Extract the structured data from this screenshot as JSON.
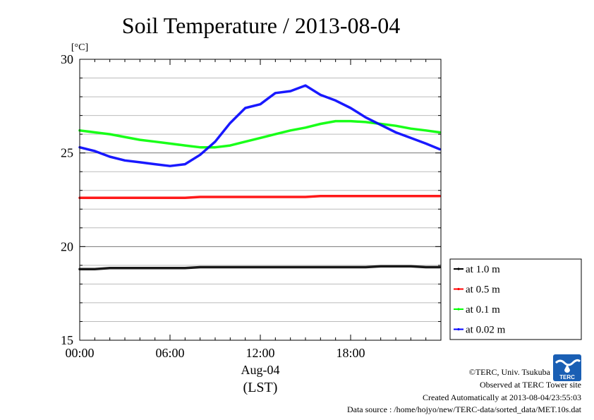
{
  "chart_data": {
    "type": "line",
    "title": "Soil Temperature / 2013-08-04",
    "ylabel": "[°C]",
    "xlabel": "(LST)",
    "date_label": "Aug-04",
    "xlim": [
      "00:00",
      "24:00"
    ],
    "ylim": [
      15,
      30
    ],
    "x_ticks": [
      "00:00",
      "06:00",
      "12:00",
      "18:00"
    ],
    "y_ticks": [
      15,
      20,
      25,
      30
    ],
    "grid": true,
    "legend_position": "right-bottom",
    "x": [
      "00:00",
      "01:00",
      "02:00",
      "03:00",
      "04:00",
      "05:00",
      "06:00",
      "07:00",
      "08:00",
      "09:00",
      "10:00",
      "11:00",
      "12:00",
      "13:00",
      "14:00",
      "15:00",
      "16:00",
      "17:00",
      "18:00",
      "19:00",
      "20:00",
      "21:00",
      "22:00",
      "23:00",
      "23:55"
    ],
    "series": [
      {
        "name": "at 1.0 m",
        "color": "#000000",
        "values": [
          18.8,
          18.8,
          18.85,
          18.85,
          18.85,
          18.85,
          18.85,
          18.85,
          18.9,
          18.9,
          18.9,
          18.9,
          18.9,
          18.9,
          18.9,
          18.9,
          18.9,
          18.9,
          18.9,
          18.9,
          18.95,
          18.95,
          18.95,
          18.9,
          18.9
        ]
      },
      {
        "name": "at 0.5 m",
        "color": "#ff0000",
        "values": [
          22.6,
          22.6,
          22.6,
          22.6,
          22.6,
          22.6,
          22.6,
          22.6,
          22.65,
          22.65,
          22.65,
          22.65,
          22.65,
          22.65,
          22.65,
          22.65,
          22.7,
          22.7,
          22.7,
          22.7,
          22.7,
          22.7,
          22.7,
          22.7,
          22.7
        ]
      },
      {
        "name": "at 0.1 m",
        "color": "#00ff00",
        "values": [
          26.2,
          26.1,
          26.0,
          25.85,
          25.7,
          25.6,
          25.5,
          25.4,
          25.3,
          25.3,
          25.4,
          25.6,
          25.8,
          26.0,
          26.2,
          26.35,
          26.55,
          26.7,
          26.7,
          26.65,
          26.55,
          26.45,
          26.3,
          26.2,
          26.1
        ]
      },
      {
        "name": "at 0.02 m",
        "color": "#0000ff",
        "values": [
          25.3,
          25.1,
          24.8,
          24.6,
          24.5,
          24.4,
          24.3,
          24.4,
          24.9,
          25.6,
          26.6,
          27.4,
          27.6,
          28.2,
          28.3,
          28.6,
          28.1,
          27.8,
          27.4,
          26.9,
          26.5,
          26.1,
          25.8,
          25.5,
          25.2
        ]
      }
    ]
  },
  "footer": {
    "copyright": "©TERC, Univ. Tsukuba",
    "observed": "Observed at TERC Tower site",
    "created": "Created Automatically at 2013-08-04/23:55:03",
    "source": "Data source : /home/hojyo/new/TERC-data/sorted_data/MET.10s.dat"
  },
  "logo": {
    "text": "TERC",
    "color": "#1a5fb4"
  }
}
